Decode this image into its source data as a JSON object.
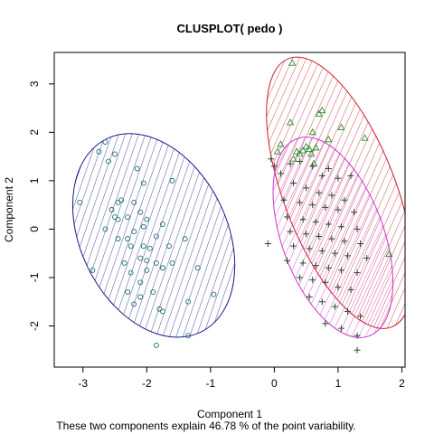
{
  "chart_data": {
    "type": "scatter",
    "title": "CLUSPLOT( pedo )",
    "xlabel": "Component 1",
    "ylabel": "Component 2",
    "subtitle": "These two components explain 46.78 % of the point variability.",
    "xlim": [
      -3.45,
      2.05
    ],
    "ylim": [
      -2.85,
      3.65
    ],
    "xticks": [
      -3,
      -2,
      -1,
      0,
      1,
      2
    ],
    "yticks": [
      -2,
      -1,
      0,
      1,
      2,
      3
    ],
    "grid": false,
    "clusters": [
      {
        "marker": "circle",
        "color": "#1c6b6b",
        "ellipse": {
          "cx": -1.89,
          "cy": -0.13,
          "rx": 1.15,
          "ry": 2.22,
          "rotation_deg": -26,
          "color": "#1a1a8c",
          "hatch_color": "#1a1a8c"
        },
        "points": [
          [
            -2.65,
            1.8
          ],
          [
            -2.75,
            1.6
          ],
          [
            -2.5,
            1.55
          ],
          [
            -2.6,
            1.4
          ],
          [
            -2.15,
            1.25
          ],
          [
            -2.05,
            0.95
          ],
          [
            -1.6,
            1.0
          ],
          [
            -2.4,
            0.6
          ],
          [
            -2.45,
            0.55
          ],
          [
            -2.55,
            0.4
          ],
          [
            -3.05,
            0.55
          ],
          [
            -2.2,
            0.55
          ],
          [
            -2.1,
            0.35
          ],
          [
            -2.3,
            0.25
          ],
          [
            -2.5,
            0.25
          ],
          [
            -2.45,
            0.2
          ],
          [
            -2.0,
            0.2
          ],
          [
            -2.05,
            0.05
          ],
          [
            -1.75,
            0.1
          ],
          [
            -2.65,
            0.0
          ],
          [
            -2.2,
            -0.05
          ],
          [
            -2.45,
            -0.2
          ],
          [
            -2.3,
            -0.2
          ],
          [
            -1.85,
            -0.15
          ],
          [
            -1.4,
            -0.2
          ],
          [
            -2.25,
            -0.35
          ],
          [
            -2.05,
            -0.35
          ],
          [
            -1.95,
            -0.4
          ],
          [
            -1.65,
            -0.35
          ],
          [
            -2.1,
            -0.6
          ],
          [
            -2.35,
            -0.7
          ],
          [
            -2.0,
            -0.65
          ],
          [
            -1.6,
            -0.7
          ],
          [
            -1.85,
            -0.7
          ],
          [
            -1.75,
            -0.8
          ],
          [
            -2.85,
            -0.85
          ],
          [
            -2.25,
            -0.9
          ],
          [
            -2.0,
            -0.85
          ],
          [
            -1.2,
            -0.8
          ],
          [
            -2.1,
            -1.1
          ],
          [
            -2.3,
            -1.3
          ],
          [
            -1.9,
            -1.3
          ],
          [
            -2.1,
            -1.4
          ],
          [
            -2.2,
            -1.55
          ],
          [
            -1.8,
            -1.65
          ],
          [
            -1.75,
            -1.7
          ],
          [
            -1.35,
            -1.5
          ],
          [
            -0.95,
            -1.35
          ],
          [
            -1.35,
            -2.2
          ],
          [
            -1.85,
            -2.4
          ]
        ]
      },
      {
        "marker": "triangle",
        "color": "#2a8c2a",
        "ellipse": {
          "cx": 1.03,
          "cy": 0.75,
          "rx": 0.88,
          "ry": 2.97,
          "rotation_deg": -21,
          "color": "#cc1a2a",
          "hatch_color": "#cc1a2a"
        },
        "points": [
          [
            0.28,
            3.43
          ],
          [
            0.75,
            2.45
          ],
          [
            0.7,
            2.38
          ],
          [
            0.6,
            2.0
          ],
          [
            1.05,
            2.1
          ],
          [
            0.85,
            1.85
          ],
          [
            0.25,
            2.2
          ],
          [
            0.5,
            1.7
          ],
          [
            0.55,
            1.65
          ],
          [
            0.65,
            1.68
          ],
          [
            0.45,
            1.62
          ],
          [
            0.35,
            1.6
          ],
          [
            0.3,
            1.45
          ],
          [
            0.58,
            1.55
          ],
          [
            0.1,
            1.75
          ],
          [
            1.42,
            1.88
          ],
          [
            1.8,
            -0.52
          ],
          [
            0.05,
            1.6
          ],
          [
            0.4,
            1.55
          ],
          [
            0.62,
            1.35
          ]
        ]
      },
      {
        "marker": "plus",
        "color": "#2a4a2a",
        "ellipse": {
          "cx": 0.92,
          "cy": -0.17,
          "rx": 0.8,
          "ry": 2.17,
          "rotation_deg": -20,
          "color": "#cc33cc",
          "hatch_color": "#cc33cc"
        },
        "points": [
          [
            -0.05,
            1.45
          ],
          [
            0.0,
            1.3
          ],
          [
            0.1,
            1.15
          ],
          [
            0.25,
            1.35
          ],
          [
            0.4,
            1.4
          ],
          [
            0.6,
            1.3
          ],
          [
            0.75,
            1.1
          ],
          [
            0.85,
            1.25
          ],
          [
            1.0,
            1.05
          ],
          [
            1.2,
            1.1
          ],
          [
            0.3,
            0.95
          ],
          [
            0.5,
            0.85
          ],
          [
            0.7,
            0.75
          ],
          [
            0.9,
            0.7
          ],
          [
            1.1,
            0.6
          ],
          [
            0.15,
            0.6
          ],
          [
            0.4,
            0.55
          ],
          [
            0.6,
            0.5
          ],
          [
            0.8,
            0.45
          ],
          [
            1.0,
            0.4
          ],
          [
            1.25,
            0.35
          ],
          [
            0.2,
            0.25
          ],
          [
            0.45,
            0.2
          ],
          [
            0.65,
            0.15
          ],
          [
            0.85,
            0.1
          ],
          [
            1.05,
            0.05
          ],
          [
            1.3,
            0.0
          ],
          [
            0.25,
            -0.05
          ],
          [
            0.5,
            -0.1
          ],
          [
            0.7,
            -0.15
          ],
          [
            0.9,
            -0.2
          ],
          [
            1.1,
            -0.25
          ],
          [
            1.35,
            -0.3
          ],
          [
            -0.1,
            -0.3
          ],
          [
            0.3,
            -0.35
          ],
          [
            0.55,
            -0.4
          ],
          [
            0.75,
            -0.45
          ],
          [
            0.95,
            -0.5
          ],
          [
            1.15,
            -0.55
          ],
          [
            1.45,
            -0.6
          ],
          [
            0.2,
            -0.65
          ],
          [
            0.45,
            -0.7
          ],
          [
            0.65,
            -0.75
          ],
          [
            0.85,
            -0.8
          ],
          [
            1.05,
            -0.85
          ],
          [
            1.3,
            -0.9
          ],
          [
            0.4,
            -1.0
          ],
          [
            0.6,
            -1.05
          ],
          [
            0.8,
            -1.1
          ],
          [
            1.0,
            -1.2
          ],
          [
            1.2,
            -1.25
          ],
          [
            0.55,
            -1.4
          ],
          [
            0.75,
            -1.5
          ],
          [
            0.95,
            -1.6
          ],
          [
            1.15,
            -1.7
          ],
          [
            1.35,
            -1.8
          ],
          [
            0.8,
            -1.95
          ],
          [
            1.05,
            -2.05
          ],
          [
            1.3,
            -2.2
          ],
          [
            1.3,
            -2.5
          ]
        ]
      }
    ]
  }
}
